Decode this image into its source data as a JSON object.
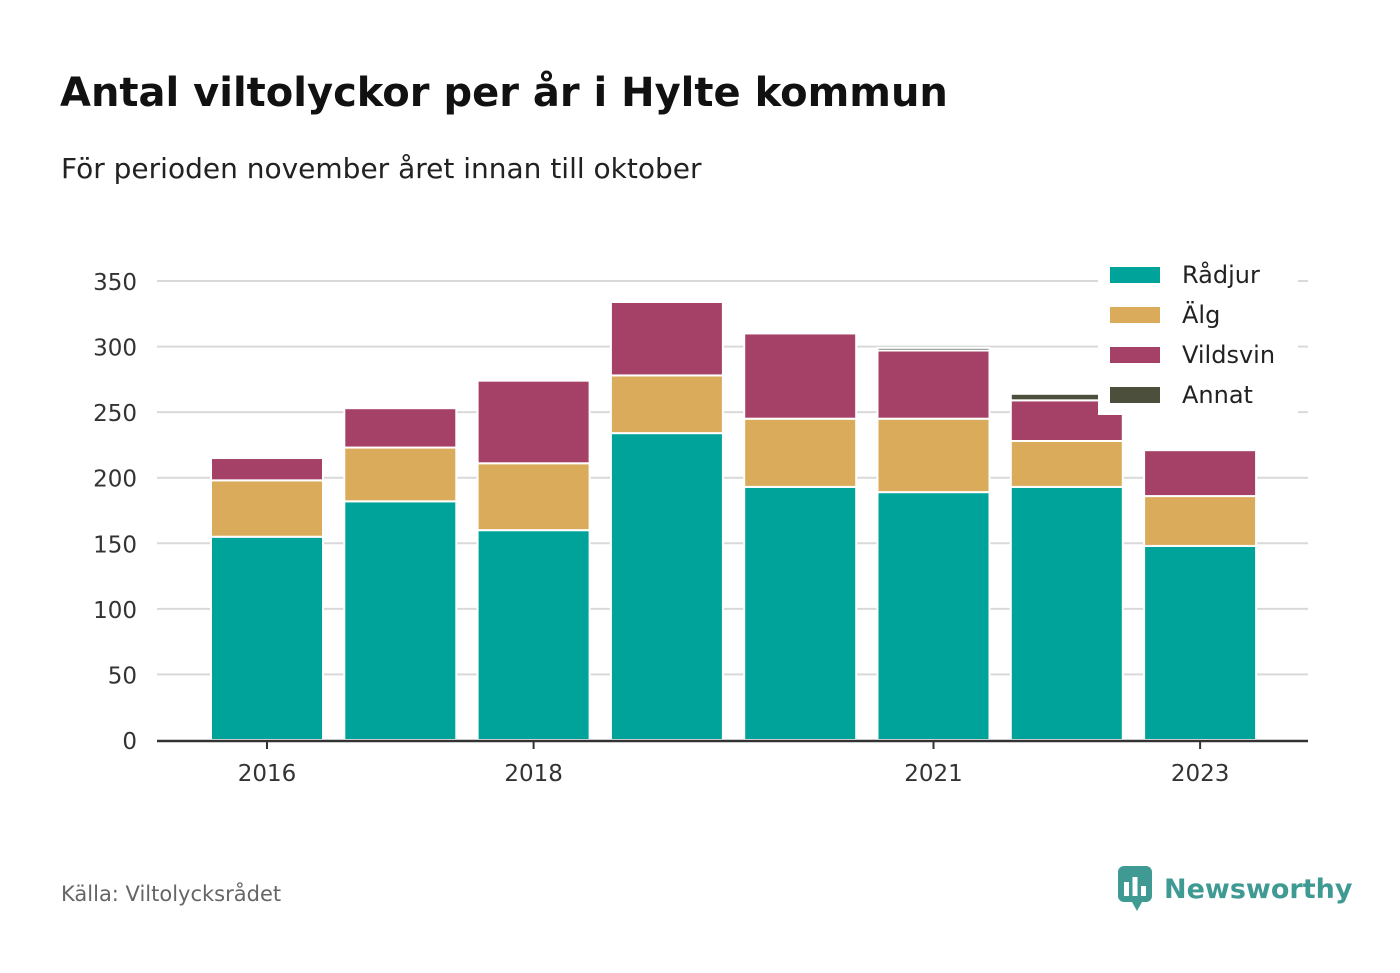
{
  "title": "Antal viltolyckor per år i Hylte kommun",
  "subtitle": "För perioden november året innan till oktober",
  "source": "Källa: Viltolycksrådet",
  "brand": {
    "name": "Newsworthy",
    "icon": "newsworthy-logo-icon",
    "color": "#3f9a94"
  },
  "colors": {
    "Rådjur": "#00a39a",
    "Älg": "#d9ab5a",
    "Vildsvin": "#a54166",
    "Annat": "#4b4f3c",
    "grid": "#d9d9d9",
    "axis": "#333333"
  },
  "chart_data": {
    "type": "bar",
    "stacked": true,
    "categories": [
      "2016",
      "2017",
      "2018",
      "2019",
      "2020",
      "2021",
      "2022",
      "2023"
    ],
    "x_tick_labels": [
      "2016",
      "2018",
      "2021",
      "2023"
    ],
    "ylim": [
      0,
      350
    ],
    "y_ticks": [
      0,
      50,
      100,
      150,
      200,
      250,
      300,
      350
    ],
    "grid": true,
    "legend_position": "top-right",
    "series": [
      {
        "name": "Rådjur",
        "values": [
          155,
          182,
          160,
          234,
          193,
          189,
          193,
          148
        ]
      },
      {
        "name": "Älg",
        "values": [
          43,
          41,
          51,
          44,
          52,
          56,
          35,
          38
        ]
      },
      {
        "name": "Vildsvin",
        "values": [
          17,
          30,
          63,
          56,
          65,
          52,
          31,
          35
        ]
      },
      {
        "name": "Annat",
        "values": [
          0,
          0,
          0,
          0,
          0,
          2,
          5,
          0
        ]
      }
    ]
  }
}
